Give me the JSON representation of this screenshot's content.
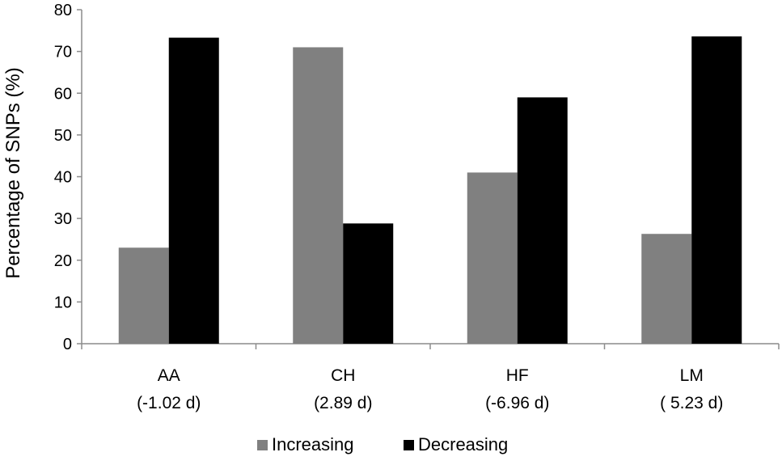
{
  "chart_data": {
    "type": "bar",
    "title": "",
    "xlabel": "",
    "ylabel": "Percentage of SNPs (%)",
    "ylim": [
      0,
      80
    ],
    "yticks": [
      0,
      10,
      20,
      30,
      40,
      50,
      60,
      70,
      80
    ],
    "categories": [
      {
        "name": "AA",
        "sub": "(-1.02 d)"
      },
      {
        "name": "CH",
        "sub": "(2.89 d)"
      },
      {
        "name": "HF",
        "sub": "(-6.96 d)"
      },
      {
        "name": "LM",
        "sub": "( 5.23 d)"
      }
    ],
    "series": [
      {
        "name": "Increasing",
        "color": "#808080",
        "values": [
          23,
          71,
          41,
          26.3
        ]
      },
      {
        "name": "Decreasing",
        "color": "#000000",
        "values": [
          73.3,
          28.8,
          59,
          73.6
        ]
      }
    ],
    "legend": "bottom-center",
    "grid": false
  }
}
